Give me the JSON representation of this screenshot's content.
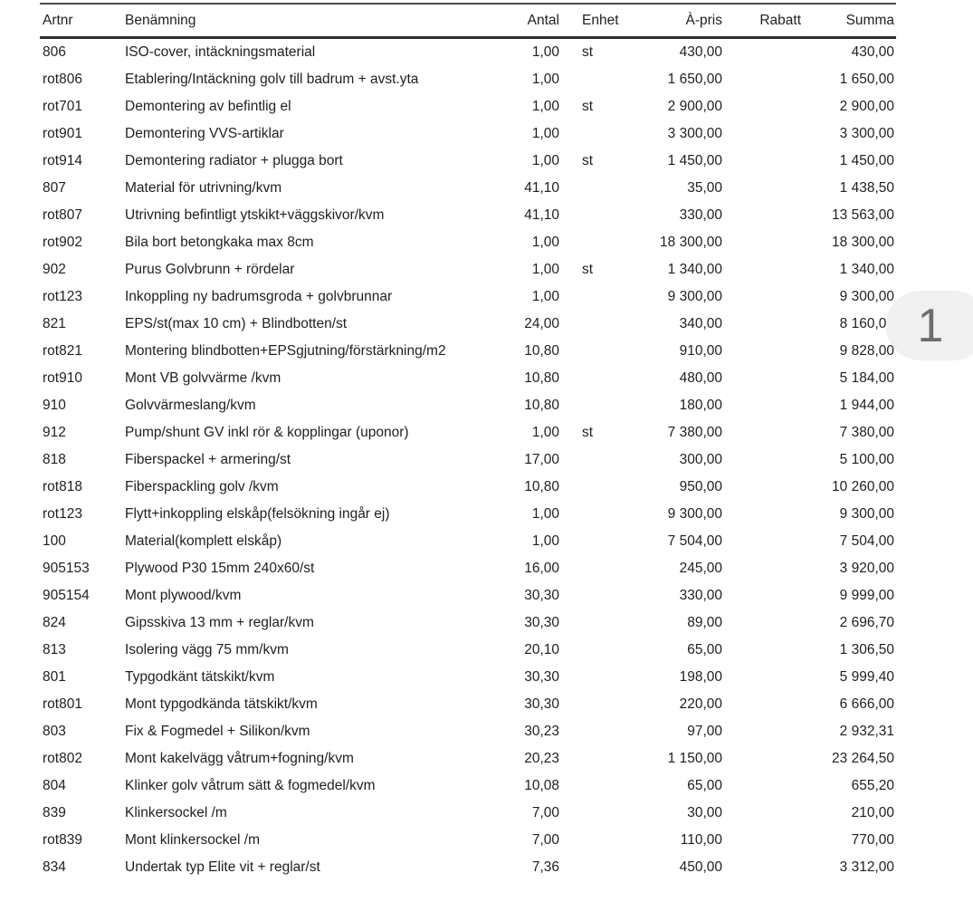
{
  "page_indicator": {
    "number": "1",
    "badge_bg": "#f0f0f1",
    "badge_fg": "#6d6d6d"
  },
  "colors": {
    "text": "#1f1f1f",
    "rule_top": "#4a4a4a",
    "rule_header": "#2e2e2e",
    "background": "#ffffff"
  },
  "table": {
    "columns": [
      {
        "key": "artnr",
        "label": "Artnr",
        "align": "left"
      },
      {
        "key": "benamning",
        "label": "Benämning",
        "align": "left"
      },
      {
        "key": "antal",
        "label": "Antal",
        "align": "right"
      },
      {
        "key": "enhet",
        "label": "Enhet",
        "align": "left"
      },
      {
        "key": "apris",
        "label": "À-pris",
        "align": "right"
      },
      {
        "key": "rabatt",
        "label": "Rabatt",
        "align": "right"
      },
      {
        "key": "summa",
        "label": "Summa",
        "align": "right"
      }
    ],
    "rows": [
      {
        "artnr": "806",
        "benamning": "ISO-cover, intäckningsmaterial",
        "antal": "1,00",
        "enhet": "st",
        "apris": "430,00",
        "rabatt": "",
        "summa": "430,00"
      },
      {
        "artnr": "rot806",
        "benamning": "Etablering/Intäckning golv till badrum + avst.yta",
        "antal": "1,00",
        "enhet": "",
        "apris": "1 650,00",
        "rabatt": "",
        "summa": "1 650,00"
      },
      {
        "artnr": "rot701",
        "benamning": "Demontering av befintlig el",
        "antal": "1,00",
        "enhet": "st",
        "apris": "2 900,00",
        "rabatt": "",
        "summa": "2 900,00"
      },
      {
        "artnr": "rot901",
        "benamning": "Demontering VVS-artiklar",
        "antal": "1,00",
        "enhet": "",
        "apris": "3 300,00",
        "rabatt": "",
        "summa": "3 300,00"
      },
      {
        "artnr": "rot914",
        "benamning": "Demontering radiator + plugga bort",
        "antal": "1,00",
        "enhet": "st",
        "apris": "1 450,00",
        "rabatt": "",
        "summa": "1 450,00"
      },
      {
        "artnr": "807",
        "benamning": "Material för utrivning/kvm",
        "antal": "41,10",
        "enhet": "",
        "apris": "35,00",
        "rabatt": "",
        "summa": "1 438,50"
      },
      {
        "artnr": "rot807",
        "benamning": "Utrivning befintligt ytskikt+väggskivor/kvm",
        "antal": "41,10",
        "enhet": "",
        "apris": "330,00",
        "rabatt": "",
        "summa": "13 563,00"
      },
      {
        "artnr": "rot902",
        "benamning": "Bila bort betongkaka max 8cm",
        "antal": "1,00",
        "enhet": "",
        "apris": "18 300,00",
        "rabatt": "",
        "summa": "18 300,00"
      },
      {
        "artnr": "902",
        "benamning": "Purus Golvbrunn + rördelar",
        "antal": "1,00",
        "enhet": "st",
        "apris": "1 340,00",
        "rabatt": "",
        "summa": "1 340,00"
      },
      {
        "artnr": "rot123",
        "benamning": "Inkoppling ny badrumsgroda + golvbrunnar",
        "antal": "1,00",
        "enhet": "",
        "apris": "9 300,00",
        "rabatt": "",
        "summa": "9 300,00"
      },
      {
        "artnr": "821",
        "benamning": "EPS/st(max 10 cm) + Blindbotten/st",
        "antal": "24,00",
        "enhet": "",
        "apris": "340,00",
        "rabatt": "",
        "summa": "8 160,00"
      },
      {
        "artnr": "rot821",
        "benamning": "Montering blindbotten+EPSgjutning/förstärkning/m2",
        "antal": "10,80",
        "enhet": "",
        "apris": "910,00",
        "rabatt": "",
        "summa": "9 828,00"
      },
      {
        "artnr": "rot910",
        "benamning": "Mont VB golvvärme /kvm",
        "antal": "10,80",
        "enhet": "",
        "apris": "480,00",
        "rabatt": "",
        "summa": "5 184,00"
      },
      {
        "artnr": "910",
        "benamning": "Golvvärmeslang/kvm",
        "antal": "10,80",
        "enhet": "",
        "apris": "180,00",
        "rabatt": "",
        "summa": "1 944,00"
      },
      {
        "artnr": "912",
        "benamning": "Pump/shunt GV inkl rör & kopplingar (uponor)",
        "antal": "1,00",
        "enhet": "st",
        "apris": "7 380,00",
        "rabatt": "",
        "summa": "7 380,00"
      },
      {
        "artnr": "818",
        "benamning": "Fiberspackel + armering/st",
        "antal": "17,00",
        "enhet": "",
        "apris": "300,00",
        "rabatt": "",
        "summa": "5 100,00"
      },
      {
        "artnr": "rot818",
        "benamning": "Fiberspackling golv /kvm",
        "antal": "10,80",
        "enhet": "",
        "apris": "950,00",
        "rabatt": "",
        "summa": "10 260,00"
      },
      {
        "artnr": "rot123",
        "benamning": "Flytt+inkoppling elskåp(felsökning ingår ej)",
        "antal": "1,00",
        "enhet": "",
        "apris": "9 300,00",
        "rabatt": "",
        "summa": "9 300,00"
      },
      {
        "artnr": "100",
        "benamning": "Material(komplett elskåp)",
        "antal": "1,00",
        "enhet": "",
        "apris": "7 504,00",
        "rabatt": "",
        "summa": "7 504,00"
      },
      {
        "artnr": "905153",
        "benamning": "Plywood P30 15mm 240x60/st",
        "antal": "16,00",
        "enhet": "",
        "apris": "245,00",
        "rabatt": "",
        "summa": "3 920,00"
      },
      {
        "artnr": "905154",
        "benamning": "Mont plywood/kvm",
        "antal": "30,30",
        "enhet": "",
        "apris": "330,00",
        "rabatt": "",
        "summa": "9 999,00"
      },
      {
        "artnr": "824",
        "benamning": "Gipsskiva 13 mm + reglar/kvm",
        "antal": "30,30",
        "enhet": "",
        "apris": "89,00",
        "rabatt": "",
        "summa": "2 696,70"
      },
      {
        "artnr": "813",
        "benamning": "Isolering vägg 75 mm/kvm",
        "antal": "20,10",
        "enhet": "",
        "apris": "65,00",
        "rabatt": "",
        "summa": "1 306,50"
      },
      {
        "artnr": "801",
        "benamning": "Typgodkänt tätskikt/kvm",
        "antal": "30,30",
        "enhet": "",
        "apris": "198,00",
        "rabatt": "",
        "summa": "5 999,40"
      },
      {
        "artnr": "rot801",
        "benamning": "Mont typgodkända tätskikt/kvm",
        "antal": "30,30",
        "enhet": "",
        "apris": "220,00",
        "rabatt": "",
        "summa": "6 666,00"
      },
      {
        "artnr": "803",
        "benamning": "Fix & Fogmedel + Silikon/kvm",
        "antal": "30,23",
        "enhet": "",
        "apris": "97,00",
        "rabatt": "",
        "summa": "2 932,31"
      },
      {
        "artnr": "rot802",
        "benamning": "Mont kakelvägg våtrum+fogning/kvm",
        "antal": "20,23",
        "enhet": "",
        "apris": "1 150,00",
        "rabatt": "",
        "summa": "23 264,50"
      },
      {
        "artnr": "804",
        "benamning": "Klinker golv våtrum sätt & fogmedel/kvm",
        "antal": "10,08",
        "enhet": "",
        "apris": "65,00",
        "rabatt": "",
        "summa": "655,20"
      },
      {
        "artnr": "839",
        "benamning": "Klinkersockel /m",
        "antal": "7,00",
        "enhet": "",
        "apris": "30,00",
        "rabatt": "",
        "summa": "210,00"
      },
      {
        "artnr": "rot839",
        "benamning": "Mont klinkersockel /m",
        "antal": "7,00",
        "enhet": "",
        "apris": "110,00",
        "rabatt": "",
        "summa": "770,00"
      },
      {
        "artnr": "834",
        "benamning": "Undertak typ Elite vit + reglar/st",
        "antal": "7,36",
        "enhet": "",
        "apris": "450,00",
        "rabatt": "",
        "summa": "3 312,00"
      }
    ]
  }
}
